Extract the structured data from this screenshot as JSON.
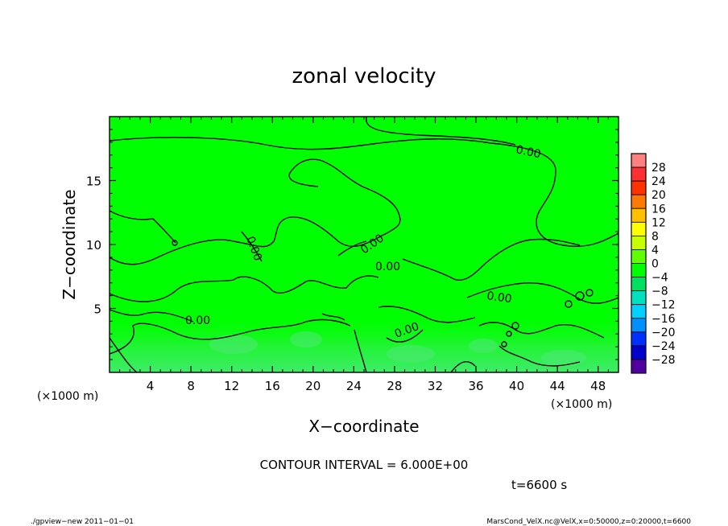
{
  "chart_data": {
    "type": "heatmap",
    "title": "zonal velocity",
    "xlabel": "X−coordinate",
    "ylabel": "Z−coordinate",
    "x_unit": "(×1000 m)",
    "y_unit": "(×1000 m)",
    "xlim": [
      0,
      50
    ],
    "ylim": [
      0,
      20
    ],
    "x_ticks": [
      4,
      8,
      12,
      16,
      20,
      24,
      28,
      32,
      36,
      40,
      44,
      48
    ],
    "y_ticks": [
      5,
      10,
      15
    ],
    "x_tick_labels": [
      "4",
      "8",
      "12",
      "16",
      "20",
      "24",
      "28",
      "32",
      "36",
      "40",
      "44",
      "48"
    ],
    "y_tick_labels": [
      "5",
      "10",
      "15"
    ],
    "colorbar": {
      "levels": [
        28,
        24,
        20,
        16,
        12,
        8,
        4,
        0,
        -4,
        -8,
        -12,
        -16,
        -20,
        -24,
        -28
      ],
      "labels": [
        "28",
        "24",
        "20",
        "16",
        "12",
        "8",
        "4",
        "0",
        "−4",
        "−8",
        "−12",
        "−16",
        "−20",
        "−24",
        "−28"
      ],
      "colors": [
        "#ff8080",
        "#ff3030",
        "#ff3300",
        "#ff7a00",
        "#ffc000",
        "#ffff00",
        "#c8ff00",
        "#60ff00",
        "#00ff00",
        "#00e060",
        "#00e0c0",
        "#00d0ff",
        "#0090ff",
        "#0030ff",
        "#0000c8",
        "#5000a0"
      ]
    },
    "contour_value_label": "0.00",
    "contour_interval_text": "CONTOUR INTERVAL = 6.000E+00",
    "time_text": "t=6600 s",
    "field_color": "#00ff00",
    "field_low_color": "#30e060"
  },
  "footer": {
    "left": "./gpview−new  2011−01−01",
    "right": "MarsCond_VelX.nc@VelX,x=0:50000,z=0:20000,t=6600"
  }
}
